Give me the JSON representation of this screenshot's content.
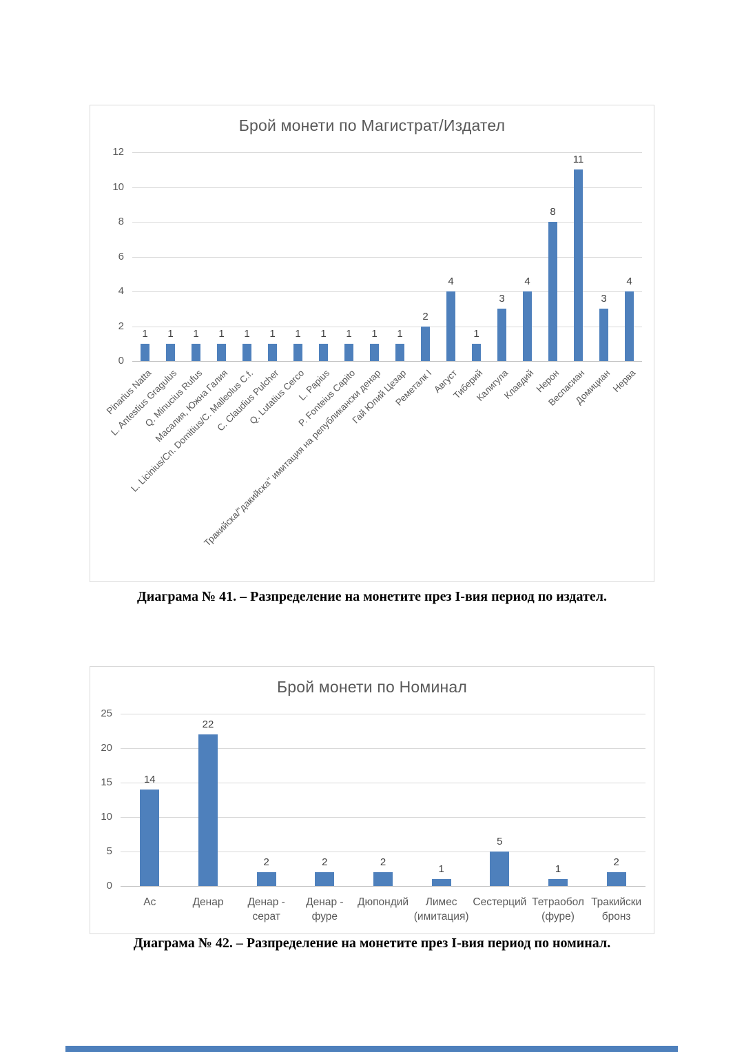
{
  "page": {
    "background": "#ffffff"
  },
  "colors": {
    "bar_fill": "#4e80bc",
    "gridline": "#d9d9d9",
    "axis_line": "#bfbfbf",
    "chart_border": "#d9d9d9",
    "axis_text": "#595959",
    "title_text": "#595959",
    "data_label_text": "#404040",
    "caption_text": "#000000"
  },
  "captions": {
    "chart1": "Диаграма № 41. – Разпределение на монетите през I-вия период по издател.",
    "chart2": "Диаграма № 42. – Разпределение на монетите през I-вия период по номинал."
  },
  "chart_data": [
    {
      "type": "bar",
      "title": "Брой монети по Магистрат/Издател",
      "categories": [
        "Pinarius Natta",
        "L. Antestius Gragulus",
        "Q. Minucius Rufus",
        "Масалия, Южна Галия",
        "L. Licinius/Cn. Domitius/C. Malleolus C.f.",
        "C. Claudius Pulcher",
        "Q. Lutatius Cerco",
        "L. Papius",
        "P. Fonteius Capito",
        "Тракийска/\"дакийска\" имитация на републикански денар",
        "Гай Юлий Цезар",
        "Реметалк I",
        "Август",
        "Тиберий",
        "Калигула",
        "Клавдий",
        "Нерон",
        "Веспасиан",
        "Домициан",
        "Нерва"
      ],
      "values": [
        1,
        1,
        1,
        1,
        1,
        1,
        1,
        1,
        1,
        1,
        1,
        2,
        4,
        1,
        3,
        4,
        8,
        11,
        3,
        4
      ],
      "xlabel": "",
      "ylabel": "",
      "ylim": [
        0,
        12
      ],
      "ytick_step": 2,
      "grid": true,
      "legend": "none",
      "data_labels": true
    },
    {
      "type": "bar",
      "title": "Брой монети по Номинал",
      "categories": [
        "Ас",
        "Денар",
        "Денар - серат",
        "Денар - фуре",
        "Дюпондий",
        "Лимес (имитация)",
        "Сестерций",
        "Тетраобол (фуре)",
        "Тракийски бронз"
      ],
      "values": [
        14,
        22,
        2,
        2,
        2,
        1,
        5,
        1,
        2
      ],
      "xlabel": "",
      "ylabel": "",
      "ylim": [
        0,
        25
      ],
      "ytick_step": 5,
      "grid": true,
      "legend": "none",
      "data_labels": true
    }
  ]
}
